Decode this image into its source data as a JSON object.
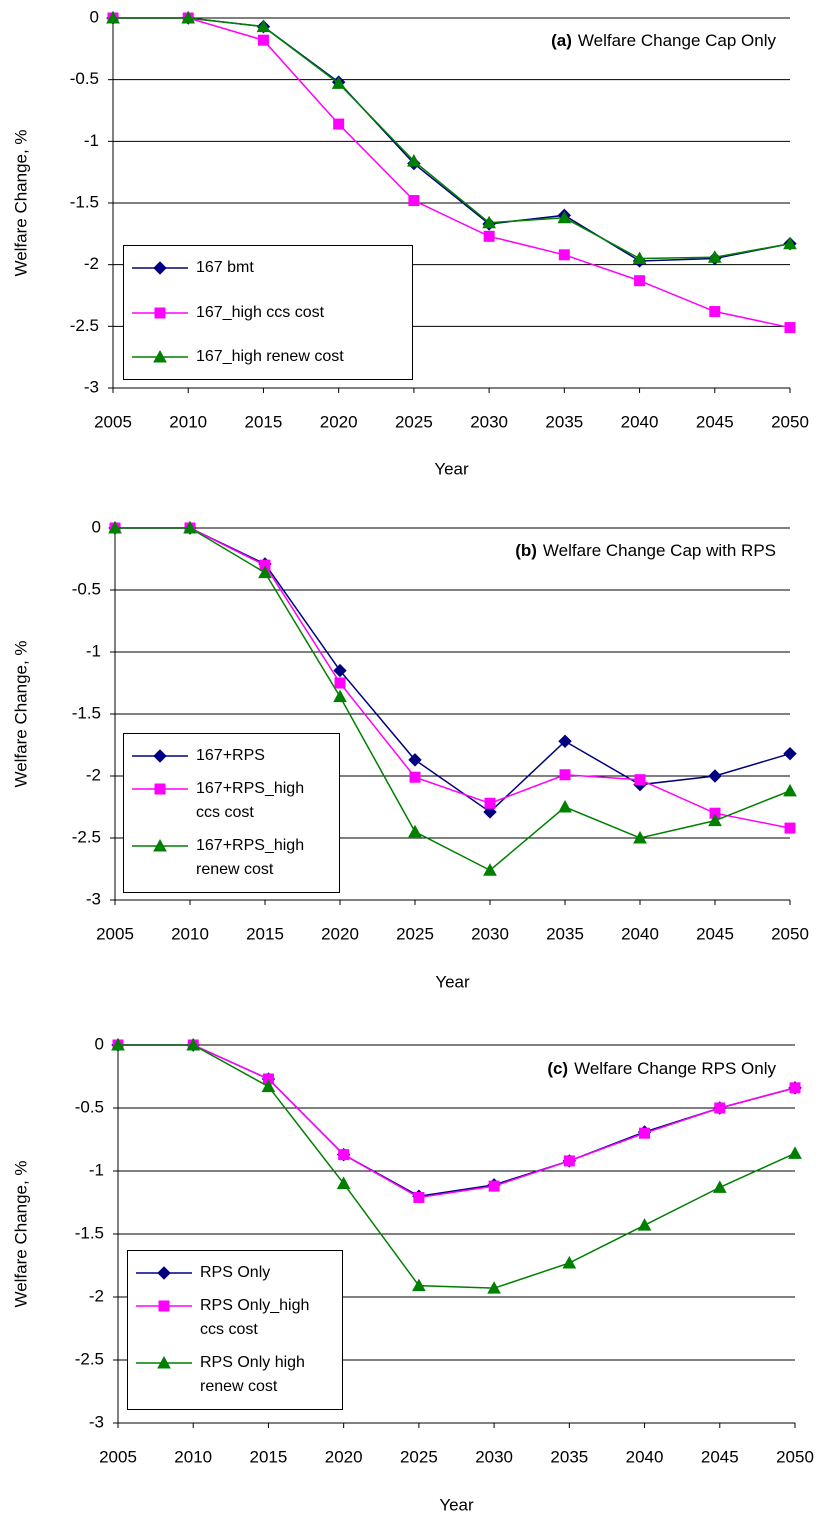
{
  "chart_data": [
    {
      "type": "line",
      "panel_label": "(a)",
      "title": "Welfare Change Cap Only",
      "x_label": "Year",
      "y_label": "Welfare Change, %",
      "categories": [
        "2005",
        "2010",
        "2015",
        "2020",
        "2025",
        "2030",
        "2035",
        "2040",
        "2045",
        "2050"
      ],
      "ylim": [
        -3,
        0
      ],
      "yticks": [
        0,
        -0.5,
        -1,
        -1.5,
        -2,
        -2.5,
        -3
      ],
      "grid": true,
      "series": [
        {
          "name": "167 bmt",
          "color": "#000080",
          "marker": "diamond",
          "values": [
            0,
            0,
            -0.07,
            -0.52,
            -1.18,
            -1.67,
            -1.6,
            -1.97,
            -1.95,
            -1.83
          ]
        },
        {
          "name": "167_high ccs cost",
          "color": "#ff00ff",
          "marker": "square",
          "values": [
            0,
            0,
            -0.18,
            -0.86,
            -1.48,
            -1.77,
            -1.92,
            -2.13,
            -2.38,
            -2.51
          ]
        },
        {
          "name": "167_high renew cost",
          "color": "#008000",
          "marker": "triangle",
          "values": [
            0,
            0,
            -0.07,
            -0.53,
            -1.16,
            -1.66,
            -1.62,
            -1.95,
            -1.94,
            -1.83
          ]
        }
      ]
    },
    {
      "type": "line",
      "panel_label": "(b)",
      "title": "Welfare Change Cap with RPS",
      "x_label": "Year",
      "y_label": "Welfare Change, %",
      "categories": [
        "2005",
        "2010",
        "2015",
        "2020",
        "2025",
        "2030",
        "2035",
        "2040",
        "2045",
        "2050"
      ],
      "ylim": [
        -3,
        0
      ],
      "yticks": [
        0,
        -0.5,
        -1,
        -1.5,
        -2,
        -2.5,
        -3
      ],
      "grid": true,
      "series": [
        {
          "name": "167+RPS",
          "color": "#000080",
          "marker": "diamond",
          "values": [
            0,
            0,
            -0.29,
            -1.15,
            -1.87,
            -2.29,
            -1.72,
            -2.07,
            -2.0,
            -1.82
          ]
        },
        {
          "name": "167+RPS_high ccs cost",
          "color": "#ff00ff",
          "marker": "square",
          "values": [
            0,
            0,
            -0.3,
            -1.25,
            -2.01,
            -2.22,
            -1.99,
            -2.03,
            -2.3,
            -2.42
          ]
        },
        {
          "name": "167+RPS_high renew cost",
          "color": "#008000",
          "marker": "triangle",
          "values": [
            0,
            0,
            -0.36,
            -1.36,
            -2.45,
            -2.76,
            -2.25,
            -2.5,
            -2.36,
            -2.12
          ]
        }
      ]
    },
    {
      "type": "line",
      "panel_label": "(c)",
      "title": "Welfare Change RPS Only",
      "x_label": "Year",
      "y_label": "Welfare Change, %",
      "categories": [
        "2005",
        "2010",
        "2015",
        "2020",
        "2025",
        "2030",
        "2035",
        "2040",
        "2045",
        "2050"
      ],
      "ylim": [
        -3,
        0
      ],
      "yticks": [
        0,
        -0.5,
        -1,
        -1.5,
        -2,
        -2.5,
        -3
      ],
      "grid": true,
      "series": [
        {
          "name": "RPS Only",
          "color": "#000080",
          "marker": "diamond",
          "values": [
            0,
            0,
            -0.27,
            -0.87,
            -1.2,
            -1.11,
            -0.92,
            -0.69,
            -0.5,
            -0.34
          ]
        },
        {
          "name": "RPS Only_high ccs cost",
          "color": "#ff00ff",
          "marker": "square",
          "values": [
            0,
            0,
            -0.27,
            -0.87,
            -1.21,
            -1.12,
            -0.92,
            -0.7,
            -0.5,
            -0.34
          ]
        },
        {
          "name": "RPS Only high renew cost",
          "color": "#008000",
          "marker": "triangle",
          "values": [
            0,
            0,
            -0.33,
            -1.1,
            -1.91,
            -1.93,
            -1.73,
            -1.43,
            -1.13,
            -0.86
          ]
        }
      ]
    }
  ]
}
